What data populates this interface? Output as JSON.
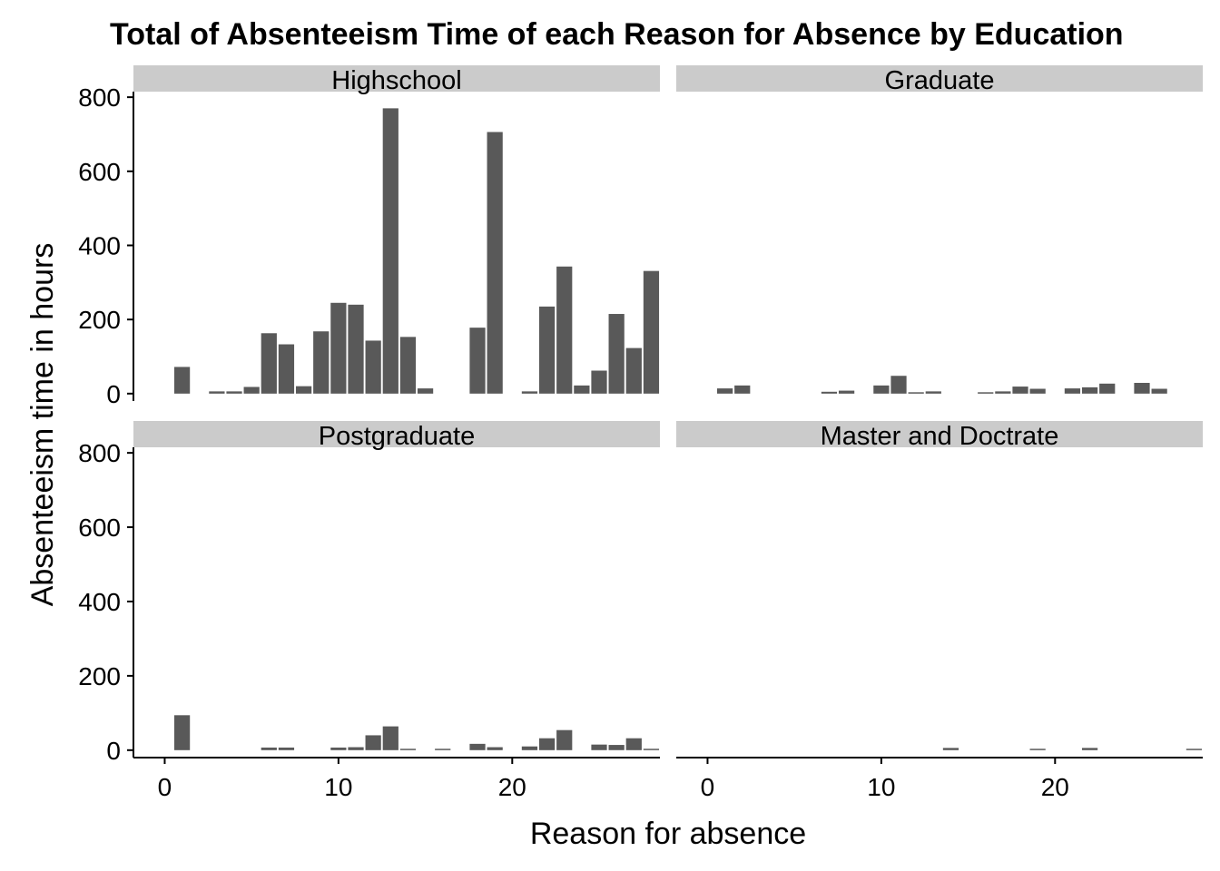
{
  "chart_data": {
    "type": "bar",
    "title": "Total of Absenteeism Time of each Reason for Absence by Education",
    "xlabel": "Reason for absence",
    "ylabel": "Absenteeism time in hours",
    "xlim": [
      -1.8,
      28.5
    ],
    "ylim": [
      -20,
      815
    ],
    "xticks": [
      0,
      10,
      20
    ],
    "yticks": [
      0,
      200,
      400,
      600,
      800
    ],
    "grid": false,
    "bar_color": "#595959",
    "strip_color": "#cbcbcb",
    "facets": [
      {
        "name": "Highschool",
        "x": [
          1,
          3,
          4,
          5,
          6,
          7,
          8,
          9,
          10,
          11,
          12,
          13,
          14,
          15,
          18,
          19,
          21,
          22,
          23,
          24,
          25,
          26,
          27,
          28
        ],
        "values": [
          72,
          6,
          6,
          18,
          163,
          133,
          20,
          168,
          245,
          240,
          143,
          770,
          153,
          14,
          178,
          706,
          6,
          235,
          343,
          22,
          62,
          215,
          123,
          331
        ]
      },
      {
        "name": "Graduate",
        "x": [
          1,
          2,
          7,
          8,
          10,
          11,
          12,
          13,
          16,
          17,
          18,
          19,
          21,
          22,
          23,
          25,
          26
        ],
        "values": [
          14,
          22,
          5,
          8,
          22,
          48,
          3,
          6,
          2,
          6,
          19,
          13,
          14,
          17,
          27,
          29,
          13
        ]
      },
      {
        "name": "Postgraduate",
        "x": [
          1,
          6,
          7,
          10,
          11,
          12,
          13,
          14,
          16,
          18,
          19,
          21,
          22,
          23,
          25,
          26,
          27,
          28
        ],
        "values": [
          94,
          7,
          7,
          7,
          8,
          40,
          64,
          2,
          2,
          17,
          8,
          10,
          32,
          54,
          15,
          14,
          32,
          2
        ]
      },
      {
        "name": "Master and Doctrate",
        "x": [
          14,
          19,
          22,
          28
        ],
        "values": [
          6,
          2,
          6,
          2
        ]
      }
    ]
  }
}
